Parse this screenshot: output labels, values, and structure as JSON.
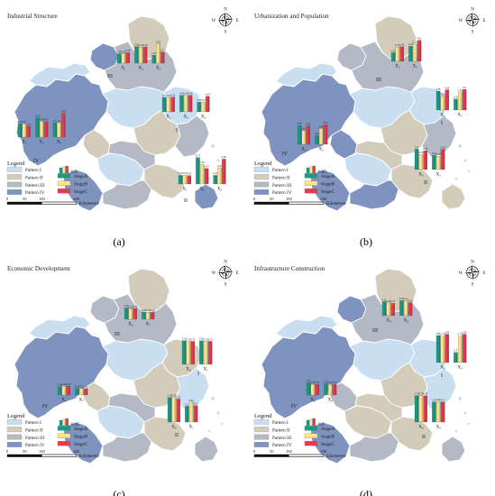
{
  "figure": {
    "patterns": [
      {
        "name": "Pattern I",
        "color": "#c9def0"
      },
      {
        "name": "Pattern II",
        "color": "#d3ccba"
      },
      {
        "name": "Pattern III",
        "color": "#b4b9c6"
      },
      {
        "name": "Pattern IV",
        "color": "#7e93bf"
      }
    ],
    "stages": [
      {
        "name": "StageA",
        "color": "#1a9a85"
      },
      {
        "name": "StageB",
        "color": "#ffe58a"
      },
      {
        "name": "StageC",
        "color": "#e43b4f"
      }
    ],
    "legend_title": "Legend",
    "scale": {
      "ticks": [
        "0",
        "50",
        "100",
        "200"
      ],
      "unit": "Kilometers"
    },
    "compass": {
      "n": "N",
      "s": "S",
      "e": "E",
      "w": "W"
    }
  },
  "panels": [
    {
      "key": "a",
      "title": "Industrial Structure",
      "label": "(a)",
      "legend_value": "0.5",
      "groups": [
        {
          "pattern": "III",
          "indicators": [
            {
              "code": "X₁",
              "values": [
                0.26,
                0.26,
                0.29
              ]
            },
            {
              "code": "X₂",
              "values": [
                0.46,
                0.44,
                0.45
              ]
            },
            {
              "code": "X₃",
              "values": [
                0.22,
                0.53,
                0.31
              ]
            }
          ]
        },
        {
          "pattern": "I",
          "indicators": [
            {
              "code": "X₁",
              "values": [
                0.4,
                0.4,
                0.41
              ]
            },
            {
              "code": "X₂",
              "values": [
                0.46,
                0.46,
                0.46
              ]
            },
            {
              "code": "X₃",
              "values": [
                0.27,
                0.27,
                0.43
              ]
            }
          ]
        },
        {
          "pattern": "IV",
          "indicators": [
            {
              "code": "X₁",
              "values": [
                0.37,
                0.37,
                0.3
              ]
            },
            {
              "code": "X₂",
              "values": [
                0.53,
                0.44,
                0.43
              ]
            },
            {
              "code": "X₃",
              "values": [
                0.4,
                0.4,
                0.66
              ]
            }
          ]
        },
        {
          "pattern": "II",
          "indicators": [
            {
              "code": "X₁",
              "values": [
                0.24,
                0.24,
                0.23
              ]
            },
            {
              "code": "X₂",
              "values": [
                0.73,
                0.54,
                0.43
              ]
            },
            {
              "code": "X₃",
              "values": [
                0.24,
                0.45,
                0.69
              ]
            }
          ]
        }
      ]
    },
    {
      "key": "b",
      "title": "Urbanization and Population",
      "label": "(b)",
      "legend_value": "0.45",
      "groups": [
        {
          "pattern": "III",
          "indicators": [
            {
              "code": "X₄",
              "values": [
                0.25,
                0.41,
                0.43
              ]
            },
            {
              "code": "X₅",
              "values": [
                0.44,
                0.51,
                0.61
              ]
            }
          ]
        },
        {
          "pattern": "I",
          "indicators": [
            {
              "code": "X₄",
              "values": [
                0.55,
                0.4,
                0.59
              ]
            },
            {
              "code": "X₅",
              "values": [
                0.32,
                0.51,
                0.6
              ]
            }
          ]
        },
        {
          "pattern": "IV",
          "indicators": [
            {
              "code": "X₄",
              "values": [
                0.55,
                0.4,
                0.53
              ]
            },
            {
              "code": "X₅",
              "values": [
                0.26,
                0.46,
                0.57
              ]
            }
          ]
        },
        {
          "pattern": "II",
          "indicators": [
            {
              "code": "X₄",
              "values": [
                0.6,
                0.44,
                0.55
              ]
            },
            {
              "code": "X₅",
              "values": [
                0.42,
                0.39,
                0.59
              ]
            }
          ]
        }
      ]
    },
    {
      "key": "c",
      "title": "Economic Development",
      "label": "(c)",
      "legend_value": "0.45",
      "groups": [
        {
          "pattern": "III",
          "indicators": [
            {
              "code": "X₆",
              "values": [
                0.36,
                0.33,
                0.34
              ]
            },
            {
              "code": "X₇",
              "values": [
                0.23,
                0.22,
                0.22
              ]
            }
          ]
        },
        {
          "pattern": "I",
          "indicators": [
            {
              "code": "X₆",
              "values": [
                0.75,
                0.73,
                0.73
              ]
            },
            {
              "code": "X₇",
              "values": [
                0.75,
                0.73,
                0.73
              ]
            }
          ]
        },
        {
          "pattern": "IV",
          "indicators": [
            {
              "code": "X₆",
              "values": [
                0.26,
                0.28,
                0.28
              ]
            },
            {
              "code": "X₇",
              "values": [
                0.21,
                0.21,
                0.2
              ]
            }
          ]
        },
        {
          "pattern": "II",
          "indicators": [
            {
              "code": "X₆",
              "values": [
                0.78,
                0.78,
                0.73
              ]
            },
            {
              "code": "X₇",
              "values": [
                0.5,
                0.63,
                0.52
              ]
            }
          ]
        }
      ]
    },
    {
      "key": "d",
      "title": "Infrastructure Construction",
      "label": "(d)",
      "legend_value": "0.6",
      "groups": [
        {
          "pattern": "III",
          "indicators": [
            {
              "code": "X₈",
              "values": [
                0.42,
                0.38,
                0.37
              ]
            },
            {
              "code": "X₉",
              "values": [
                0.45,
                0.44,
                0.39
              ]
            }
          ]
        },
        {
          "pattern": "I",
          "indicators": [
            {
              "code": "X₈",
              "values": [
                0.81,
                0.79,
                0.85
              ]
            },
            {
              "code": "X₉",
              "values": [
                0.3,
                0.79,
                0.85
              ]
            }
          ]
        },
        {
          "pattern": "IV",
          "indicators": [
            {
              "code": "X₈",
              "values": [
                0.37,
                0.32,
                0.32
              ]
            },
            {
              "code": "X₉",
              "values": [
                0.33,
                0.32,
                0.32
              ]
            }
          ]
        },
        {
          "pattern": "II",
          "indicators": [
            {
              "code": "X₈",
              "values": [
                0.79,
                0.79,
                0.79
              ]
            },
            {
              "code": "X₉",
              "values": [
                0.6,
                0.62,
                0.6
              ]
            }
          ]
        }
      ]
    }
  ]
}
